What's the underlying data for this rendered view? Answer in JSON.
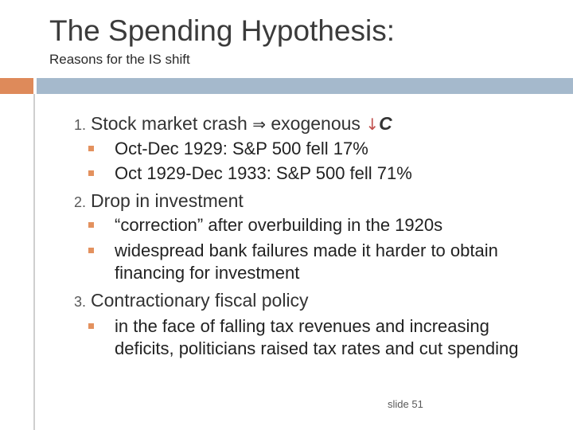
{
  "slide": {
    "title": "The Spending Hypothesis:",
    "subtitle": "Reasons for the IS shift",
    "footer": "slide 51"
  },
  "items": [
    {
      "number": "1.",
      "text_a": "Stock market crash ",
      "implies_symbol": "⇒",
      "text_b": " exogenous ",
      "down_symbol": "↓",
      "var": "C",
      "subs": [
        "Oct-Dec 1929:  S&P 500 fell 17%",
        "Oct 1929-Dec 1933:  S&P 500 fell 71%"
      ]
    },
    {
      "number": "2.",
      "text": "Drop in investment",
      "subs": [
        "“correction” after overbuilding in the 1920s",
        "widespread bank failures made it harder to obtain financing for investment"
      ]
    },
    {
      "number": "3.",
      "text": "Contractionary fiscal policy",
      "subs": [
        "in the face of falling tax revenues and increasing deficits, politicians raised tax rates and cut spending"
      ]
    }
  ],
  "colors": {
    "accent_orange": "#de8a5a",
    "accent_blue": "#a5b9cc",
    "bullet": "#e3915e",
    "highlight_red": "#c0504d"
  }
}
